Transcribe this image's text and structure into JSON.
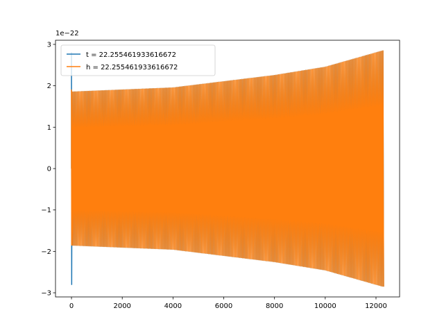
{
  "chart_data": {
    "type": "line",
    "title": "",
    "xlabel": "",
    "ylabel": "",
    "y_offset_label": "1e−22",
    "y_scale_factor": 1e-22,
    "xlim": [
      -630,
      12930
    ],
    "ylim": [
      -3.1,
      3.1
    ],
    "x_ticks": [
      0,
      2000,
      4000,
      6000,
      8000,
      10000,
      12000
    ],
    "x_tick_labels": [
      "0",
      "2000",
      "4000",
      "6000",
      "8000",
      "10000",
      "12000"
    ],
    "y_ticks": [
      -3,
      -2,
      -1,
      0,
      1,
      2,
      3
    ],
    "y_tick_labels": [
      "−3",
      "−2",
      "−1",
      "0",
      "1",
      "2",
      "3"
    ],
    "grid": false,
    "legend_position": "upper-left",
    "series": [
      {
        "name": "t = 22.255461933616672",
        "color": "#1f77b4",
        "envelope": {
          "x": [
            0,
            4000,
            8000,
            10000,
            12300
          ],
          "amplitude": [
            1.85,
            1.95,
            2.25,
            2.45,
            2.85
          ]
        },
        "initial_spike": {
          "x": 0,
          "y_max": 2.8,
          "y_min": -2.8
        },
        "cycles": 230,
        "x_range": [
          0,
          12300
        ]
      },
      {
        "name": "h = 22.255461933616672",
        "color": "#ff7f0e",
        "envelope": {
          "x": [
            0,
            4000,
            8000,
            10000,
            12300
          ],
          "amplitude": [
            1.85,
            1.95,
            2.25,
            2.45,
            2.85
          ]
        },
        "initial_spike": {
          "x": 0,
          "y_max": 1.9,
          "y_min": -1.85
        },
        "cycles": 230,
        "x_range": [
          0,
          12300
        ]
      }
    ]
  }
}
